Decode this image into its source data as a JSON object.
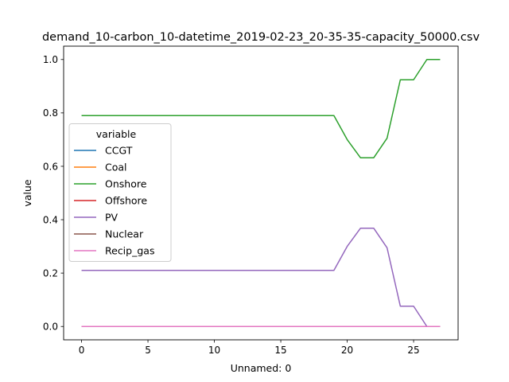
{
  "chart_data": {
    "type": "line",
    "title": "demand_10-carbon_10-datetime_2019-02-23_20-35-35-capacity_50000.csv",
    "xlabel": "Unnamed: 0",
    "ylabel": "value",
    "xlim": [
      -1.35,
      28.35
    ],
    "ylim": [
      -0.05,
      1.05
    ],
    "xticks": [
      0,
      5,
      10,
      15,
      20,
      25
    ],
    "xtick_labels": [
      "0",
      "5",
      "10",
      "15",
      "20",
      "25"
    ],
    "yticks": [
      0.0,
      0.2,
      0.4,
      0.6,
      0.8,
      1.0
    ],
    "ytick_labels": [
      "0.0",
      "0.2",
      "0.4",
      "0.6",
      "0.8",
      "1.0"
    ],
    "grid": false,
    "legend": {
      "title": "variable",
      "position": "center-left"
    },
    "x": [
      0,
      1,
      2,
      3,
      4,
      5,
      6,
      7,
      8,
      9,
      10,
      11,
      12,
      13,
      14,
      15,
      16,
      17,
      18,
      19,
      20,
      21,
      22,
      23,
      24,
      25,
      26,
      27
    ],
    "series": [
      {
        "name": "CCGT",
        "color": "#1f77b4",
        "values": [
          0,
          0,
          0,
          0,
          0,
          0,
          0,
          0,
          0,
          0,
          0,
          0,
          0,
          0,
          0,
          0,
          0,
          0,
          0,
          0,
          0,
          0,
          0,
          0,
          0,
          0,
          0,
          0
        ]
      },
      {
        "name": "Coal",
        "color": "#ff7f0e",
        "values": [
          0,
          0,
          0,
          0,
          0,
          0,
          0,
          0,
          0,
          0,
          0,
          0,
          0,
          0,
          0,
          0,
          0,
          0,
          0,
          0,
          0,
          0,
          0,
          0,
          0,
          0,
          0,
          0
        ]
      },
      {
        "name": "Onshore",
        "color": "#2ca02c",
        "values": [
          0.79,
          0.79,
          0.79,
          0.79,
          0.79,
          0.79,
          0.79,
          0.79,
          0.79,
          0.79,
          0.79,
          0.79,
          0.79,
          0.79,
          0.79,
          0.79,
          0.79,
          0.79,
          0.79,
          0.79,
          0.7,
          0.632,
          0.632,
          0.705,
          0.924,
          0.924,
          1.0,
          1.0
        ]
      },
      {
        "name": "Offshore",
        "color": "#d62728",
        "values": [
          0,
          0,
          0,
          0,
          0,
          0,
          0,
          0,
          0,
          0,
          0,
          0,
          0,
          0,
          0,
          0,
          0,
          0,
          0,
          0,
          0,
          0,
          0,
          0,
          0,
          0,
          0,
          0
        ]
      },
      {
        "name": "PV",
        "color": "#9467bd",
        "values": [
          0.21,
          0.21,
          0.21,
          0.21,
          0.21,
          0.21,
          0.21,
          0.21,
          0.21,
          0.21,
          0.21,
          0.21,
          0.21,
          0.21,
          0.21,
          0.21,
          0.21,
          0.21,
          0.21,
          0.21,
          0.3,
          0.368,
          0.368,
          0.295,
          0.076,
          0.076,
          0.0,
          0.0
        ]
      },
      {
        "name": "Nuclear",
        "color": "#8c564b",
        "values": [
          0,
          0,
          0,
          0,
          0,
          0,
          0,
          0,
          0,
          0,
          0,
          0,
          0,
          0,
          0,
          0,
          0,
          0,
          0,
          0,
          0,
          0,
          0,
          0,
          0,
          0,
          0,
          0
        ]
      },
      {
        "name": "Recip_gas",
        "color": "#e377c2",
        "values": [
          0,
          0,
          0,
          0,
          0,
          0,
          0,
          0,
          0,
          0,
          0,
          0,
          0,
          0,
          0,
          0,
          0,
          0,
          0,
          0,
          0,
          0,
          0,
          0,
          0,
          0,
          0,
          0
        ]
      }
    ]
  }
}
